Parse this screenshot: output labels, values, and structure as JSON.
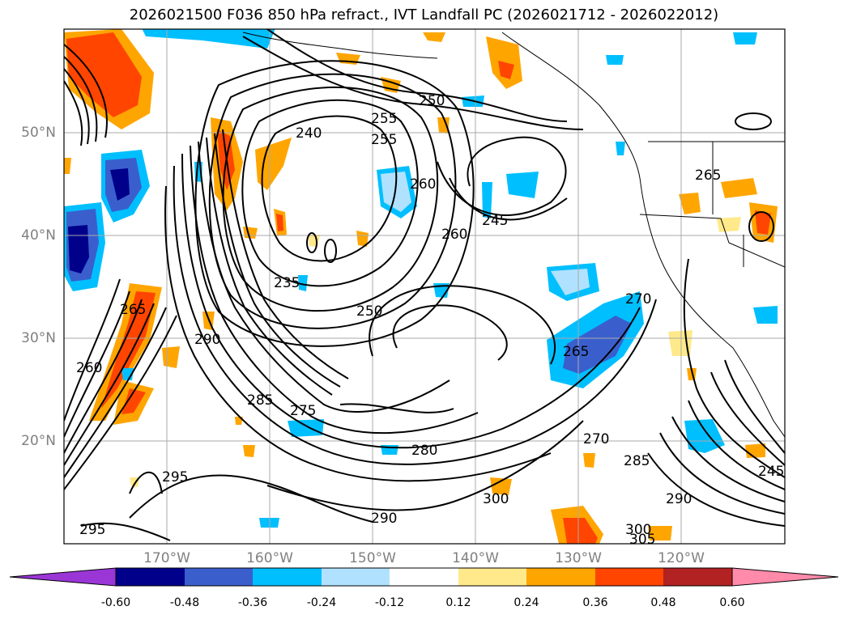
{
  "title": "2026021500 F036 850 hPa refract., IVT Landfall PC (2026021712 - 2026022012)",
  "lat_labels": [
    "50°N",
    "40°N",
    "30°N",
    "20°N"
  ],
  "lon_labels": [
    "170°W",
    "160°W",
    "150°W",
    "140°W",
    "130°W",
    "120°W"
  ],
  "contour_labels": [
    "240",
    "250",
    "255",
    "260",
    "245",
    "260",
    "235",
    "250",
    "265",
    "270",
    "275",
    "280",
    "285",
    "290",
    "295",
    "300",
    "305",
    "265",
    "265",
    "260",
    "255",
    "245",
    "270",
    "285",
    "290",
    "290",
    "295",
    "300"
  ],
  "colorbar": {
    "ticks": [
      "-0.60",
      "-0.48",
      "-0.36",
      "-0.24",
      "-0.12",
      "0.12",
      "0.24",
      "0.36",
      "0.48",
      "0.60"
    ],
    "colors": [
      "#9a36d6",
      "#00008b",
      "#3a5fcd",
      "#00bfff",
      "#b0e2ff",
      "#ffffff",
      "#ffe98a",
      "#ffa500",
      "#ff4500",
      "#b22222",
      "#ff8aaa"
    ]
  },
  "colors": {
    "axis_label": "#808080",
    "contour": "#000000",
    "grid": "#aaaaaa"
  }
}
